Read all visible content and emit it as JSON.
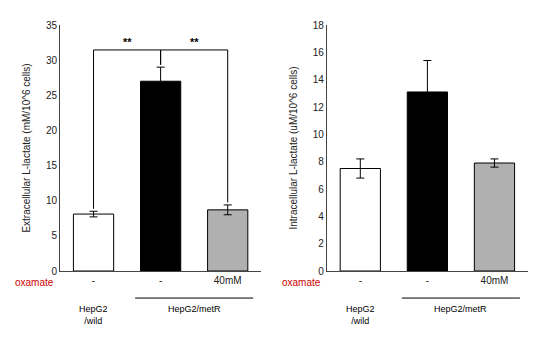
{
  "chart_data": [
    {
      "type": "bar",
      "ylabel": "Extracellular L-lactate (mM/10^6 cells)",
      "categories": [
        "-",
        "-",
        "40mM"
      ],
      "values": [
        8.1,
        27.0,
        8.7
      ],
      "errors": [
        0.4,
        2.0,
        0.7
      ],
      "colors": [
        "white",
        "black",
        "#b0b0b0"
      ],
      "ylim": [
        0,
        35
      ],
      "yticks": [
        0,
        5,
        10,
        15,
        20,
        25,
        30,
        35
      ],
      "grid": false,
      "row_label": {
        "text": "oxamate",
        "color": "#cc0000"
      },
      "groups": [
        {
          "text": "HepG2\n/wild",
          "categories": [
            0
          ]
        },
        {
          "text": "HepG2/metR",
          "categories": [
            1,
            2
          ]
        }
      ],
      "annotations": [
        {
          "text": "**",
          "from": 0,
          "to": 1
        },
        {
          "text": "**",
          "from": 1,
          "to": 2
        }
      ]
    },
    {
      "type": "bar",
      "ylabel": "Intracellular L-lactate (uM/10^6 cells)",
      "categories": [
        "-",
        "-",
        "40mM"
      ],
      "values": [
        7.5,
        13.1,
        7.9
      ],
      "errors": [
        0.7,
        2.3,
        0.3
      ],
      "colors": [
        "white",
        "black",
        "#b0b0b0"
      ],
      "ylim": [
        0,
        18
      ],
      "yticks": [
        0,
        2,
        4,
        6,
        8,
        10,
        12,
        14,
        16,
        18
      ],
      "grid": false,
      "row_label": {
        "text": "oxamate",
        "color": "#cc0000"
      },
      "groups": [
        {
          "text": "HepG2\n/wild",
          "categories": [
            0
          ]
        },
        {
          "text": "HepG2/metR",
          "categories": [
            1,
            2
          ]
        }
      ]
    }
  ]
}
